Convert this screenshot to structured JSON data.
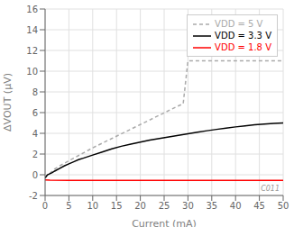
{
  "chart_data": {
    "type": "line",
    "xlabel": "Current (mA)",
    "ylabel": "ΔVOUT (μV)",
    "annotations": [
      "C011"
    ],
    "xlim": [
      0,
      50
    ],
    "ylim": [
      -2,
      16
    ],
    "xticks": [
      0,
      5,
      10,
      15,
      20,
      25,
      30,
      35,
      40,
      45,
      50
    ],
    "yticks": [
      -2,
      0,
      2,
      4,
      6,
      8,
      10,
      12,
      14,
      16
    ],
    "grid": true,
    "legend": "upper right",
    "series": [
      {
        "name": "VDD = 5 V",
        "color": "#aaaaaa",
        "line_style": "dashed",
        "x": [
          0,
          0.5,
          1,
          1.5,
          2,
          3,
          4,
          5,
          6,
          7,
          8,
          9,
          10,
          12,
          14,
          16,
          18,
          20,
          22,
          24,
          26,
          28,
          29,
          30,
          32,
          34,
          36,
          38,
          40,
          42,
          44,
          46,
          48,
          50
        ],
        "values": [
          -0.3,
          0.0,
          0.15,
          0.35,
          0.55,
          0.85,
          1.1,
          1.35,
          1.6,
          1.85,
          2.1,
          2.35,
          2.6,
          3.05,
          3.5,
          3.95,
          4.4,
          4.85,
          5.3,
          5.75,
          6.2,
          6.65,
          6.85,
          11.0,
          11.0,
          11.0,
          11.0,
          11.0,
          11.0,
          11.0,
          11.0,
          11.0,
          11.0,
          11.0
        ]
      },
      {
        "name": "VDD = 3.3 V",
        "color": "#000000",
        "line_style": "solid",
        "x": [
          0,
          0.5,
          1,
          1.5,
          2,
          3,
          4,
          5,
          6,
          7,
          8,
          9,
          10,
          12,
          14,
          16,
          18,
          20,
          22,
          24,
          26,
          28,
          30,
          32,
          34,
          36,
          38,
          40,
          42,
          44,
          46,
          48,
          50
        ],
        "values": [
          -0.3,
          0.0,
          0.1,
          0.2,
          0.35,
          0.6,
          0.85,
          1.05,
          1.25,
          1.45,
          1.6,
          1.75,
          1.9,
          2.2,
          2.5,
          2.75,
          2.95,
          3.15,
          3.35,
          3.5,
          3.65,
          3.8,
          3.95,
          4.1,
          4.25,
          4.38,
          4.5,
          4.62,
          4.72,
          4.82,
          4.9,
          4.95,
          5.0
        ]
      },
      {
        "name": "VDD = 1.8 V",
        "color": "#ff0000",
        "line_style": "solid",
        "x": [
          0,
          1,
          5,
          10,
          20,
          30,
          40,
          50
        ],
        "values": [
          -0.5,
          -0.52,
          -0.55,
          -0.55,
          -0.55,
          -0.55,
          -0.55,
          -0.55
        ]
      }
    ]
  }
}
